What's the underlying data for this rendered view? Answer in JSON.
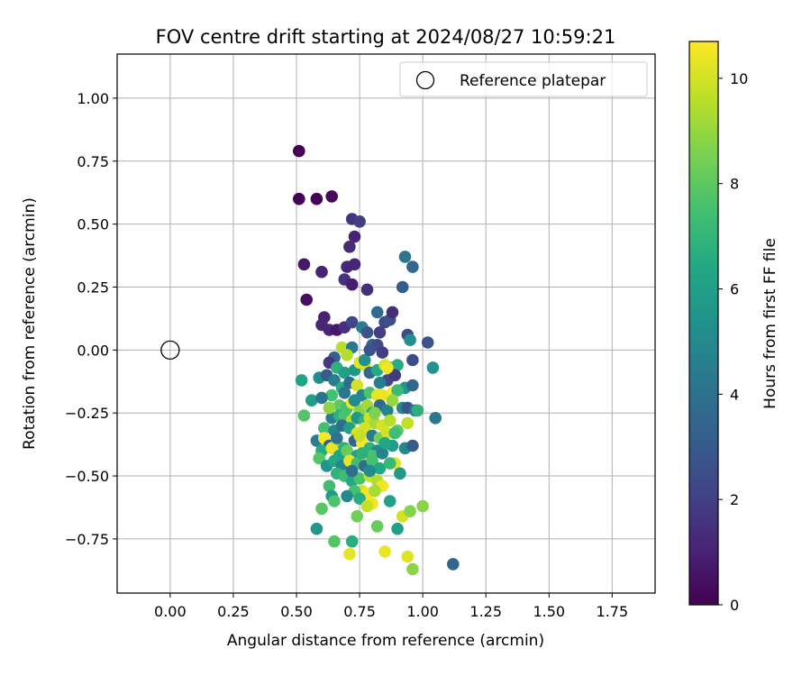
{
  "chart_data": {
    "type": "scatter",
    "title": "FOV centre drift starting at 2024/08/27 10:59:21",
    "xlabel": "Angular distance from reference (arcmin)",
    "ylabel": "Rotation from reference (arcmin)",
    "xlim": [
      -0.21,
      1.92
    ],
    "ylim": [
      -0.965,
      1.175
    ],
    "x_ticks": [
      "0.00",
      "0.25",
      "0.50",
      "0.75",
      "1.00",
      "1.25",
      "1.50",
      "1.75"
    ],
    "x_tick_values": [
      0,
      0.25,
      0.5,
      0.75,
      1.0,
      1.25,
      1.5,
      1.75
    ],
    "y_ticks": [
      "1.00",
      "0.75",
      "0.50",
      "0.25",
      "0.00",
      "−0.25",
      "−0.50",
      "−0.75"
    ],
    "y_tick_values": [
      1.0,
      0.75,
      0.5,
      0.25,
      0,
      -0.25,
      -0.5,
      -0.75
    ],
    "grid": true,
    "legend": {
      "placement": "top-right",
      "label": "Reference platepar"
    },
    "reference_point": {
      "x": 0,
      "y": 0
    },
    "colorbar": {
      "label": "Hours from first FF file",
      "colormap": "viridis",
      "range": [
        0,
        10.7
      ],
      "ticks": [
        "0",
        "2",
        "4",
        "6",
        "8",
        "10"
      ],
      "tick_values": [
        0,
        2,
        4,
        6,
        8,
        10
      ]
    },
    "points": [
      [
        0.51,
        0.79,
        0.0
      ],
      [
        0.51,
        0.6,
        0.1
      ],
      [
        0.58,
        0.6,
        0.1
      ],
      [
        0.64,
        0.61,
        0.2
      ],
      [
        0.53,
        0.34,
        0.7
      ],
      [
        0.54,
        0.2,
        0.4
      ],
      [
        0.6,
        0.31,
        1.0
      ],
      [
        0.72,
        0.52,
        1.6
      ],
      [
        0.75,
        0.51,
        1.9
      ],
      [
        0.73,
        0.45,
        1.0
      ],
      [
        0.71,
        0.41,
        1.3
      ],
      [
        0.7,
        0.33,
        1.2
      ],
      [
        0.73,
        0.34,
        1.1
      ],
      [
        0.69,
        0.28,
        1.5
      ],
      [
        0.72,
        0.26,
        0.9
      ],
      [
        0.78,
        0.24,
        1.4
      ],
      [
        0.61,
        0.13,
        1.0
      ],
      [
        0.6,
        0.1,
        1.2
      ],
      [
        0.63,
        0.08,
        1.1
      ],
      [
        0.66,
        0.08,
        0.7
      ],
      [
        0.69,
        0.09,
        1.5
      ],
      [
        0.72,
        0.11,
        2.2
      ],
      [
        0.76,
        0.09,
        4.5
      ],
      [
        0.78,
        0.07,
        2.8
      ],
      [
        0.82,
        0.15,
        3.7
      ],
      [
        0.85,
        0.11,
        2.3
      ],
      [
        0.87,
        0.12,
        2.6
      ],
      [
        0.88,
        0.15,
        1.4
      ],
      [
        0.93,
        0.37,
        4.2
      ],
      [
        0.96,
        0.33,
        3.6
      ],
      [
        0.92,
        0.25,
        3.1
      ],
      [
        0.94,
        0.06,
        2.5
      ],
      [
        0.95,
        0.04,
        5.3
      ],
      [
        1.02,
        0.03,
        2.7
      ],
      [
        0.96,
        -0.04,
        2.5
      ],
      [
        1.04,
        -0.07,
        5.4
      ],
      [
        0.83,
        0.07,
        2.0
      ],
      [
        0.8,
        0.02,
        3.4
      ],
      [
        0.82,
        0.02,
        2.4
      ],
      [
        0.84,
        -0.01,
        1.9
      ],
      [
        0.68,
        0.01,
        9.6
      ],
      [
        0.72,
        0.01,
        4.3
      ],
      [
        0.65,
        -0.03,
        3.4
      ],
      [
        0.63,
        -0.05,
        1.7
      ],
      [
        0.66,
        -0.07,
        6.8
      ],
      [
        0.69,
        -0.09,
        6.0
      ],
      [
        0.73,
        -0.08,
        5.7
      ],
      [
        0.75,
        -0.05,
        10.3
      ],
      [
        0.77,
        -0.06,
        10.0
      ],
      [
        0.79,
        -0.09,
        3.6
      ],
      [
        0.82,
        -0.08,
        6.5
      ],
      [
        0.85,
        -0.06,
        10.1
      ],
      [
        0.87,
        -0.07,
        7.5
      ],
      [
        0.9,
        -0.06,
        6.6
      ],
      [
        0.86,
        -0.12,
        2.4
      ],
      [
        0.89,
        -0.1,
        1.8
      ],
      [
        0.93,
        -0.15,
        5.6
      ],
      [
        0.96,
        -0.14,
        3.5
      ],
      [
        0.52,
        -0.12,
        6.2
      ],
      [
        0.59,
        -0.11,
        5.3
      ],
      [
        0.62,
        -0.1,
        3.1
      ],
      [
        0.65,
        -0.12,
        4.6
      ],
      [
        0.68,
        -0.15,
        6.6
      ],
      [
        0.71,
        -0.13,
        3.8
      ],
      [
        0.74,
        -0.14,
        10.0
      ],
      [
        0.76,
        -0.18,
        4.9
      ],
      [
        0.79,
        -0.17,
        7.6
      ],
      [
        0.82,
        -0.18,
        10.3
      ],
      [
        0.84,
        -0.18,
        10.4
      ],
      [
        0.88,
        -0.17,
        10.7
      ],
      [
        0.9,
        -0.16,
        7.2
      ],
      [
        0.64,
        -0.18,
        7.5
      ],
      [
        0.56,
        -0.2,
        5.9
      ],
      [
        0.6,
        -0.19,
        4.2
      ],
      [
        0.67,
        -0.22,
        8.0
      ],
      [
        0.7,
        -0.23,
        7.5
      ],
      [
        0.72,
        -0.21,
        10.5
      ],
      [
        0.75,
        -0.24,
        8.7
      ],
      [
        0.78,
        -0.22,
        9.2
      ],
      [
        0.8,
        -0.25,
        6.4
      ],
      [
        0.83,
        -0.22,
        3.6
      ],
      [
        0.86,
        -0.24,
        4.8
      ],
      [
        0.92,
        -0.23,
        4.9
      ],
      [
        0.94,
        -0.23,
        2.8
      ],
      [
        0.97,
        -0.24,
        4.4
      ],
      [
        0.98,
        -0.24,
        6.8
      ],
      [
        0.53,
        -0.26,
        7.8
      ],
      [
        0.64,
        -0.27,
        4.5
      ],
      [
        0.67,
        -0.26,
        6.8
      ],
      [
        0.69,
        -0.26,
        7.6
      ],
      [
        0.72,
        -0.28,
        9.6
      ],
      [
        0.74,
        -0.27,
        5.6
      ],
      [
        0.77,
        -0.28,
        7.0
      ],
      [
        0.79,
        -0.27,
        9.9
      ],
      [
        0.81,
        -0.29,
        9.3
      ],
      [
        0.84,
        -0.3,
        10.0
      ],
      [
        0.87,
        -0.28,
        9.5
      ],
      [
        0.9,
        -0.32,
        8.0
      ],
      [
        0.94,
        -0.29,
        9.7
      ],
      [
        1.05,
        -0.27,
        4.3
      ],
      [
        0.61,
        -0.31,
        7.5
      ],
      [
        0.65,
        -0.32,
        4.9
      ],
      [
        0.68,
        -0.3,
        3.8
      ],
      [
        0.71,
        -0.31,
        6.0
      ],
      [
        0.74,
        -0.33,
        10.1
      ],
      [
        0.77,
        -0.31,
        10.0
      ],
      [
        0.8,
        -0.34,
        4.5
      ],
      [
        0.83,
        -0.35,
        8.4
      ],
      [
        0.86,
        -0.33,
        10.0
      ],
      [
        0.89,
        -0.33,
        7.4
      ],
      [
        0.58,
        -0.36,
        4.5
      ],
      [
        0.61,
        -0.35,
        10.6
      ],
      [
        0.63,
        -0.38,
        3.3
      ],
      [
        0.66,
        -0.37,
        8.6
      ],
      [
        0.69,
        -0.39,
        6.6
      ],
      [
        0.73,
        -0.36,
        3.5
      ],
      [
        0.76,
        -0.37,
        10.6
      ],
      [
        0.79,
        -0.39,
        6.9
      ],
      [
        0.82,
        -0.4,
        5.0
      ],
      [
        0.88,
        -0.38,
        5.9
      ],
      [
        0.93,
        -0.39,
        5.0
      ],
      [
        0.96,
        -0.38,
        3.1
      ],
      [
        0.6,
        -0.4,
        6.5
      ],
      [
        0.64,
        -0.39,
        10.3
      ],
      [
        0.67,
        -0.42,
        6.2
      ],
      [
        0.7,
        -0.4,
        8.2
      ],
      [
        0.74,
        -0.42,
        6.0
      ],
      [
        0.77,
        -0.43,
        10.4
      ],
      [
        0.8,
        -0.42,
        7.6
      ],
      [
        0.84,
        -0.41,
        4.7
      ],
      [
        0.59,
        -0.43,
        7.8
      ],
      [
        0.62,
        -0.46,
        5.5
      ],
      [
        0.65,
        -0.44,
        6.4
      ],
      [
        0.68,
        -0.46,
        4.8
      ],
      [
        0.71,
        -0.44,
        10.3
      ],
      [
        0.74,
        -0.45,
        7.4
      ],
      [
        0.77,
        -0.46,
        4.0
      ],
      [
        0.8,
        -0.44,
        7.5
      ],
      [
        0.83,
        -0.47,
        6.4
      ],
      [
        0.89,
        -0.45,
        10.3
      ],
      [
        0.91,
        -0.49,
        5.7
      ],
      [
        0.66,
        -0.49,
        6.9
      ],
      [
        0.69,
        -0.5,
        7.3
      ],
      [
        0.72,
        -0.52,
        6.4
      ],
      [
        0.75,
        -0.51,
        7.6
      ],
      [
        0.79,
        -0.5,
        9.7
      ],
      [
        0.82,
        -0.52,
        9.5
      ],
      [
        0.84,
        -0.54,
        10.5
      ],
      [
        0.63,
        -0.54,
        7.4
      ],
      [
        0.76,
        -0.56,
        10.1
      ],
      [
        0.78,
        -0.57,
        10.5
      ],
      [
        0.73,
        -0.56,
        7.5
      ],
      [
        0.7,
        -0.58,
        5.0
      ],
      [
        0.81,
        -0.56,
        9.3
      ],
      [
        0.64,
        -0.58,
        5.8
      ],
      [
        0.65,
        -0.6,
        7.7
      ],
      [
        0.75,
        -0.59,
        6.6
      ],
      [
        0.8,
        -0.61,
        10.5
      ],
      [
        0.78,
        -0.62,
        9.8
      ],
      [
        0.87,
        -0.6,
        6.1
      ],
      [
        0.6,
        -0.63,
        7.9
      ],
      [
        0.74,
        -0.66,
        8.4
      ],
      [
        0.92,
        -0.66,
        10.0
      ],
      [
        0.95,
        -0.64,
        8.7
      ],
      [
        1.0,
        -0.62,
        8.8
      ],
      [
        0.58,
        -0.71,
        5.6
      ],
      [
        0.82,
        -0.7,
        8.2
      ],
      [
        0.9,
        -0.71,
        6.0
      ],
      [
        0.65,
        -0.76,
        7.8
      ],
      [
        0.72,
        -0.76,
        6.7
      ],
      [
        0.71,
        -0.81,
        10.3
      ],
      [
        0.85,
        -0.8,
        10.4
      ],
      [
        0.94,
        -0.82,
        10.2
      ],
      [
        0.96,
        -0.87,
        8.8
      ],
      [
        1.12,
        -0.85,
        3.5
      ],
      [
        0.86,
        -0.07,
        10.5
      ],
      [
        0.77,
        -0.04,
        5.4
      ],
      [
        0.79,
        0.0,
        2.7
      ],
      [
        0.7,
        -0.02,
        9.5
      ],
      [
        0.83,
        -0.13,
        4.5
      ],
      [
        0.73,
        -0.2,
        5.2
      ],
      [
        0.88,
        -0.2,
        9.0
      ],
      [
        0.66,
        -0.35,
        4.1
      ],
      [
        0.76,
        -0.41,
        6.8
      ],
      [
        0.85,
        -0.37,
        6.3
      ],
      [
        0.72,
        -0.48,
        3.8
      ],
      [
        0.79,
        -0.48,
        5.1
      ],
      [
        0.69,
        -0.17,
        4.2
      ],
      [
        0.81,
        -0.25,
        8.6
      ],
      [
        0.75,
        -0.34,
        9.8
      ],
      [
        0.87,
        -0.45,
        7.1
      ],
      [
        0.63,
        -0.23,
        8.9
      ]
    ]
  }
}
